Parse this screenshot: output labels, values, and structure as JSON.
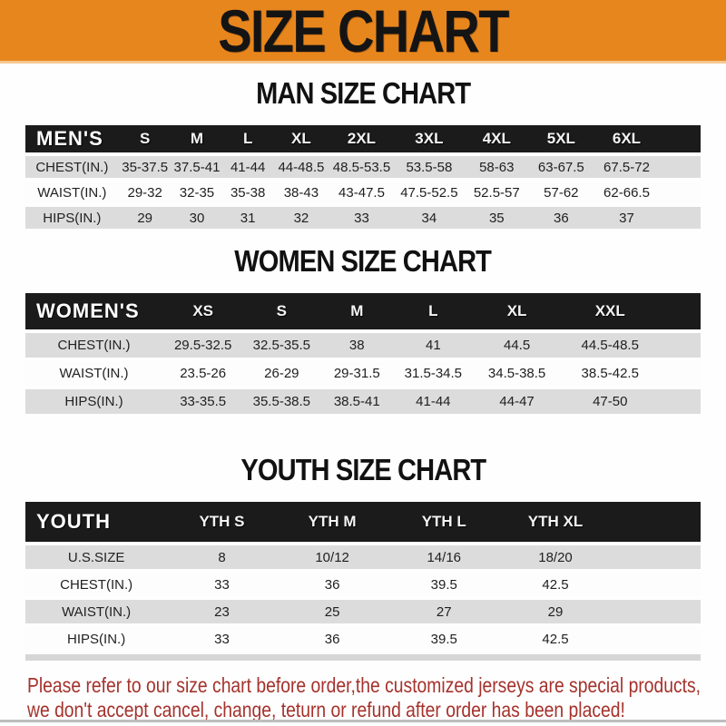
{
  "banner": {
    "title": "SIZE CHART"
  },
  "colors": {
    "banner_bg": "#E8861E",
    "bar_bg": "#1B1B1B",
    "row_gray": "#DCDCDC",
    "footer_red": "#A5322C"
  },
  "sections": {
    "men": {
      "heading": "MAN SIZE CHART"
    },
    "women": {
      "heading": "WOMEN SIZE CHART"
    },
    "youth": {
      "heading": "YOUTH SIZE CHART"
    }
  },
  "tables": {
    "men": {
      "label": "MEN'S",
      "columns": [
        "S",
        "M",
        "L",
        "XL",
        "2XL",
        "3XL",
        "4XL",
        "5XL",
        "6XL"
      ],
      "rows": [
        {
          "label": "CHEST(IN.)",
          "values": [
            "35-37.5",
            "37.5-41",
            "41-44",
            "44-48.5",
            "48.5-53.5",
            "53.5-58",
            "58-63",
            "63-67.5",
            "67.5-72"
          ]
        },
        {
          "label": "WAIST(IN.)",
          "values": [
            "29-32",
            "32-35",
            "35-38",
            "38-43",
            "43-47.5",
            "47.5-52.5",
            "52.5-57",
            "57-62",
            "62-66.5"
          ]
        },
        {
          "label": "HIPS(IN.)",
          "values": [
            "29",
            "30",
            "31",
            "32",
            "33",
            "34",
            "35",
            "36",
            "37"
          ]
        }
      ]
    },
    "women": {
      "label": "WOMEN'S",
      "columns": [
        "XS",
        "S",
        "M",
        "L",
        "XL",
        "XXL"
      ],
      "rows": [
        {
          "label": "CHEST(IN.)",
          "values": [
            "29.5-32.5",
            "32.5-35.5",
            "38",
            "41",
            "44.5",
            "44.5-48.5"
          ]
        },
        {
          "label": "WAIST(IN.)",
          "values": [
            "23.5-26",
            "26-29",
            "29-31.5",
            "31.5-34.5",
            "34.5-38.5",
            "38.5-42.5"
          ]
        },
        {
          "label": "HIPS(IN.)",
          "values": [
            "33-35.5",
            "35.5-38.5",
            "38.5-41",
            "41-44",
            "44-47",
            "47-50"
          ]
        }
      ]
    },
    "youth": {
      "label": "YOUTH",
      "columns": [
        "YTH S",
        "YTH M",
        "YTH L",
        "YTH XL"
      ],
      "rows": [
        {
          "label": "U.S.SIZE",
          "values": [
            "8",
            "10/12",
            "14/16",
            "18/20"
          ]
        },
        {
          "label": "CHEST(IN.)",
          "values": [
            "33",
            "36",
            "39.5",
            "42.5"
          ]
        },
        {
          "label": "WAIST(IN.)",
          "values": [
            "23",
            "25",
            "27",
            "29"
          ]
        },
        {
          "label": "HIPS(IN.)",
          "values": [
            "33",
            "36",
            "39.5",
            "42.5"
          ]
        }
      ]
    }
  },
  "footer": {
    "line1": "Please refer to our size chart before order,the customized jerseys are special products,",
    "line2": "we don't accept cancel, change, teturn or refund after order has been placed!"
  }
}
